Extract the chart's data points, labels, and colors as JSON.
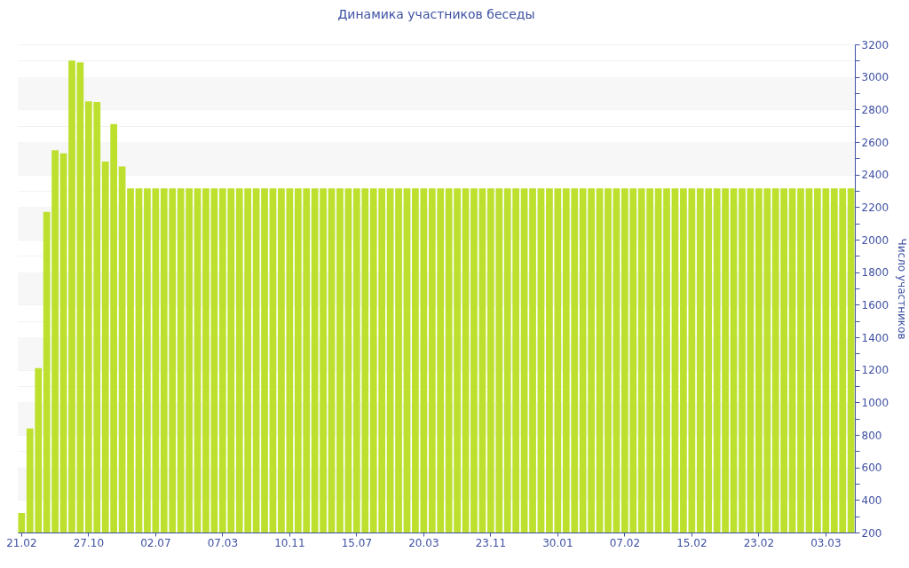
{
  "chart_data": {
    "type": "bar",
    "title": "Динамика участников беседы",
    "ylabel": "Число участников",
    "categories": [
      "21.02",
      null,
      null,
      null,
      null,
      null,
      null,
      null,
      "27.10",
      null,
      null,
      null,
      null,
      null,
      null,
      null,
      "02.07",
      null,
      null,
      null,
      null,
      null,
      null,
      null,
      "07.03",
      null,
      null,
      null,
      null,
      null,
      null,
      null,
      "10.11",
      null,
      null,
      null,
      null,
      null,
      null,
      null,
      "15.07",
      null,
      null,
      null,
      null,
      null,
      null,
      null,
      "20.03",
      null,
      null,
      null,
      null,
      null,
      null,
      null,
      "23.11",
      null,
      null,
      null,
      null,
      null,
      null,
      null,
      "30.01",
      null,
      null,
      null,
      null,
      null,
      null,
      null,
      "07.02",
      null,
      null,
      null,
      null,
      null,
      null,
      null,
      "15.02",
      null,
      null,
      null,
      null,
      null,
      null,
      null,
      "23.02",
      null,
      null,
      null,
      null,
      null,
      null,
      null,
      "03.03",
      null,
      null,
      null
    ],
    "values": [
      320,
      840,
      1210,
      2170,
      2550,
      2530,
      3100,
      3090,
      2850,
      2845,
      2480,
      2710,
      2450,
      2315,
      2315,
      2315,
      2315,
      2315,
      2315,
      2315,
      2315,
      2315,
      2315,
      2315,
      2315,
      2315,
      2315,
      2315,
      2315,
      2315,
      2315,
      2315,
      2315,
      2315,
      2315,
      2315,
      2315,
      2315,
      2315,
      2315,
      2315,
      2315,
      2315,
      2315,
      2315,
      2315,
      2315,
      2315,
      2315,
      2315,
      2315,
      2315,
      2315,
      2315,
      2315,
      2315,
      2315,
      2315,
      2315,
      2315,
      2315,
      2315,
      2315,
      2315,
      2315,
      2315,
      2315,
      2315,
      2315,
      2315,
      2315,
      2315,
      2315,
      2315,
      2315,
      2315,
      2315,
      2315,
      2315,
      2315,
      2315,
      2315,
      2315,
      2315,
      2315,
      2315,
      2315,
      2315,
      2315,
      2315,
      2315,
      2315,
      2315,
      2315,
      2315,
      2315,
      2315,
      2315,
      2315,
      2315
    ],
    "color": "#bde02e",
    "ylim": [
      200,
      3200
    ],
    "yticks": [
      200,
      {
        "value": 300,
        "label": null
      },
      400,
      {
        "value": 500,
        "label": null
      },
      600,
      {
        "value": 700,
        "label": null
      },
      800,
      {
        "value": 900,
        "label": null
      },
      1000,
      {
        "value": 1100,
        "label": null
      },
      1200,
      {
        "value": 1300,
        "label": null
      },
      1400,
      {
        "value": 1500,
        "label": null
      },
      1600,
      {
        "value": 1700,
        "label": null
      },
      1800,
      {
        "value": 1900,
        "label": null
      },
      2000,
      {
        "value": 2100,
        "label": null
      },
      2200,
      {
        "value": 2300,
        "label": null
      },
      2400,
      {
        "value": 2500,
        "label": null
      },
      2600,
      {
        "value": 2700,
        "label": null
      },
      2800,
      {
        "value": 2900,
        "label": null
      },
      3000,
      {
        "value": 3100,
        "label": null
      },
      3200
    ],
    "grid": "y"
  }
}
